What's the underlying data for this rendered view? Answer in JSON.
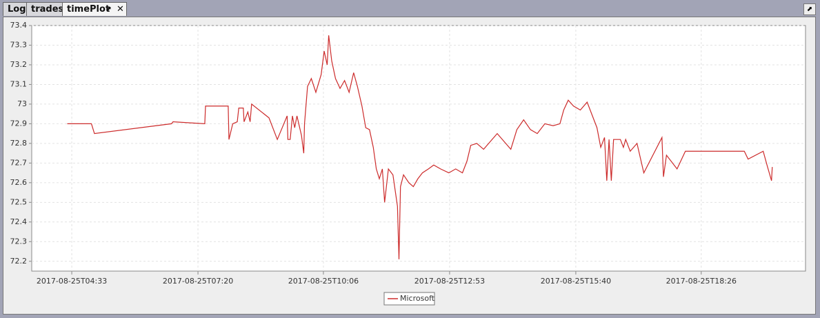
{
  "ui": {
    "tabs": [
      "Log",
      "trades",
      "timePlot"
    ]
  },
  "chart_data": {
    "type": "line",
    "x": [
      "2017-08-25T04:27",
      "2017-08-25T04:59",
      "2017-08-25T05:03",
      "2017-08-25T06:45",
      "2017-08-25T06:47",
      "2017-08-25T07:29",
      "2017-08-25T07:30",
      "2017-08-25T08:00",
      "2017-08-25T08:01",
      "2017-08-25T08:06",
      "2017-08-25T08:12",
      "2017-08-25T08:14",
      "2017-08-25T08:20",
      "2017-08-25T08:21",
      "2017-08-25T08:26",
      "2017-08-25T08:29",
      "2017-08-25T08:31",
      "2017-08-25T08:54",
      "2017-08-25T09:05",
      "2017-08-25T09:18",
      "2017-08-25T09:19",
      "2017-08-25T09:22",
      "2017-08-25T09:25",
      "2017-08-25T09:28",
      "2017-08-25T09:31",
      "2017-08-25T09:37",
      "2017-08-25T09:40",
      "2017-08-25T09:41",
      "2017-08-25T09:45",
      "2017-08-25T09:50",
      "2017-08-25T09:56",
      "2017-08-25T10:03",
      "2017-08-25T10:07",
      "2017-08-25T10:11",
      "2017-08-25T10:13",
      "2017-08-25T10:17",
      "2017-08-25T10:22",
      "2017-08-25T10:28",
      "2017-08-25T10:34",
      "2017-08-25T10:40",
      "2017-08-25T10:46",
      "2017-08-25T10:51",
      "2017-08-25T10:57",
      "2017-08-25T11:02",
      "2017-08-25T11:07",
      "2017-08-25T11:12",
      "2017-08-25T11:16",
      "2017-08-25T11:20",
      "2017-08-25T11:24",
      "2017-08-25T11:27",
      "2017-08-25T11:32",
      "2017-08-25T11:38",
      "2017-08-25T11:44",
      "2017-08-25T11:46",
      "2017-08-25T11:48",
      "2017-08-25T11:52",
      "2017-08-25T11:59",
      "2017-08-25T12:05",
      "2017-08-25T12:11",
      "2017-08-25T12:17",
      "2017-08-25T12:25",
      "2017-08-25T12:32",
      "2017-08-25T12:41",
      "2017-08-25T12:52",
      "2017-08-25T13:01",
      "2017-08-25T13:10",
      "2017-08-25T13:16",
      "2017-08-25T13:21",
      "2017-08-25T13:29",
      "2017-08-25T13:38",
      "2017-08-25T13:47",
      "2017-08-25T13:56",
      "2017-08-25T14:05",
      "2017-08-25T14:14",
      "2017-08-25T14:22",
      "2017-08-25T14:31",
      "2017-08-25T14:40",
      "2017-08-25T14:49",
      "2017-08-25T14:59",
      "2017-08-25T15:10",
      "2017-08-25T15:19",
      "2017-08-25T15:24",
      "2017-08-25T15:30",
      "2017-08-25T15:37",
      "2017-08-25T15:46",
      "2017-08-25T15:55",
      "2017-08-25T16:02",
      "2017-08-25T16:08",
      "2017-08-25T16:13",
      "2017-08-25T16:18",
      "2017-08-25T16:21",
      "2017-08-25T16:24",
      "2017-08-25T16:27",
      "2017-08-25T16:30",
      "2017-08-25T16:39",
      "2017-08-25T16:43",
      "2017-08-25T16:46",
      "2017-08-25T16:52",
      "2017-08-25T17:01",
      "2017-08-25T17:10",
      "2017-08-25T17:34",
      "2017-08-25T17:36",
      "2017-08-25T17:40",
      "2017-08-25T17:54",
      "2017-08-25T18:05",
      "2017-08-25T19:23",
      "2017-08-25T19:28",
      "2017-08-25T19:48",
      "2017-08-25T19:53",
      "2017-08-25T19:59",
      "2017-08-25T20:00"
    ],
    "series": [
      {
        "name": "Microsoft",
        "color": "#cc2a2a",
        "values": [
          72.9,
          72.9,
          72.85,
          72.9,
          72.91,
          72.9,
          72.99,
          72.99,
          72.82,
          72.9,
          72.91,
          72.98,
          72.98,
          72.91,
          72.96,
          72.91,
          73.0,
          72.93,
          72.82,
          72.94,
          72.82,
          72.82,
          72.94,
          72.88,
          72.94,
          72.84,
          72.75,
          72.9,
          73.09,
          73.13,
          73.06,
          73.15,
          73.27,
          73.2,
          73.35,
          73.22,
          73.13,
          73.08,
          73.12,
          73.06,
          73.16,
          73.09,
          72.99,
          72.88,
          72.87,
          72.78,
          72.67,
          72.62,
          72.67,
          72.5,
          72.67,
          72.64,
          72.48,
          72.21,
          72.58,
          72.64,
          72.6,
          72.58,
          72.62,
          72.65,
          72.67,
          72.69,
          72.67,
          72.65,
          72.67,
          72.65,
          72.71,
          72.79,
          72.8,
          72.77,
          72.81,
          72.85,
          72.81,
          72.77,
          72.87,
          72.92,
          72.87,
          72.85,
          72.9,
          72.89,
          72.9,
          72.97,
          73.02,
          72.99,
          72.97,
          73.01,
          72.94,
          72.88,
          72.78,
          72.83,
          72.61,
          72.82,
          72.61,
          72.82,
          72.82,
          72.78,
          72.82,
          72.76,
          72.8,
          72.65,
          72.83,
          72.63,
          72.74,
          72.67,
          72.76,
          72.76,
          72.72,
          72.76,
          72.69,
          72.61,
          72.68
        ]
      }
    ],
    "xlim": [
      "2017-08-25T03:40",
      "2017-08-25T20:44"
    ],
    "xticks": [
      "2017-08-25T04:33",
      "2017-08-25T07:20",
      "2017-08-25T10:06",
      "2017-08-25T12:53",
      "2017-08-25T15:40",
      "2017-08-25T18:26"
    ],
    "ylim": [
      72.15,
      73.4
    ],
    "yticks": [
      72.2,
      72.3,
      72.4,
      72.5,
      72.6,
      72.7,
      72.8,
      72.9,
      73,
      73.1,
      73.2,
      73.3,
      73.4
    ],
    "grid": true
  }
}
